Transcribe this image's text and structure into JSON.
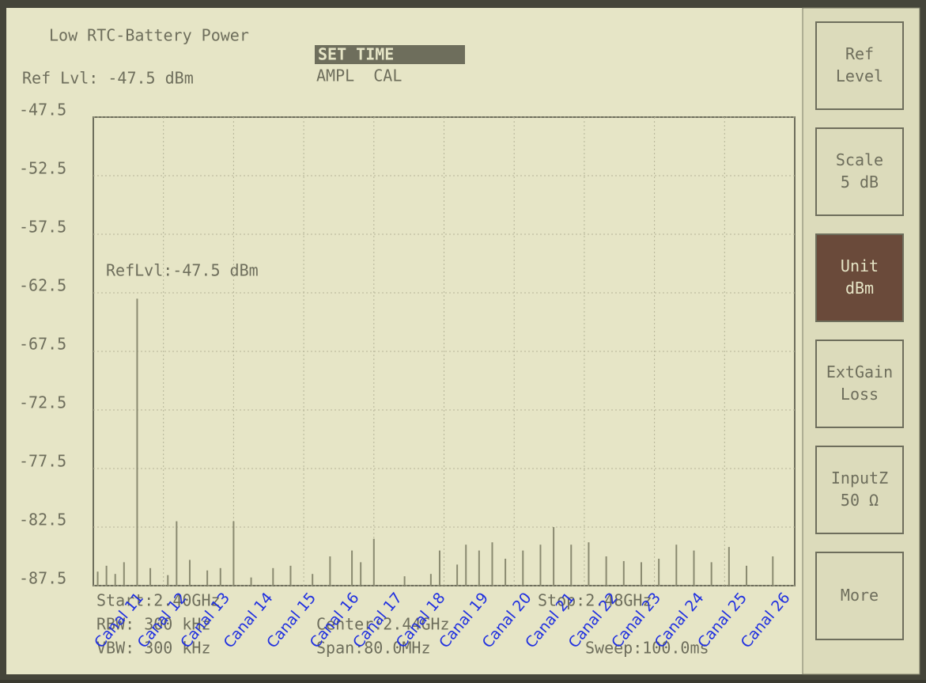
{
  "status": {
    "battery": "Low RTC-Battery Power",
    "set_time": "SET TIME",
    "ampl_cal": "AMPL  CAL"
  },
  "chart_data": {
    "type": "spectrum",
    "ref_level_label": "Ref Lvl: -47.5 dBm",
    "marker_label": "RefLvl:-47.5 dBm",
    "color": "#8a8a70",
    "xlim": [
      2.4,
      2.48
    ],
    "ylim": [
      -87.5,
      -47.5
    ],
    "yticks": [
      -47.5,
      -52.5,
      -57.5,
      -62.5,
      -67.5,
      -72.5,
      -77.5,
      -82.5,
      -87.5
    ],
    "grid": true,
    "x": [
      2.4005,
      2.4015,
      2.4025,
      2.4035,
      2.405,
      2.4065,
      2.4085,
      2.4095,
      2.411,
      2.413,
      2.4145,
      2.416,
      2.418,
      2.4205,
      2.4225,
      2.425,
      2.427,
      2.4295,
      2.4305,
      2.432,
      2.4355,
      2.4385,
      2.4395,
      2.4415,
      2.4425,
      2.444,
      2.4455,
      2.447,
      2.449,
      2.451,
      2.4525,
      2.4545,
      2.4565,
      2.4585,
      2.4605,
      2.4625,
      2.4645,
      2.4665,
      2.4685,
      2.4705,
      2.4725,
      2.4745,
      2.4775
    ],
    "values": [
      -86.3,
      -85.8,
      -86.5,
      -85.5,
      -63.0,
      -86.0,
      -86.6,
      -82.0,
      -85.3,
      -86.2,
      -86.0,
      -82.0,
      -86.8,
      -86.0,
      -85.8,
      -86.5,
      -85.0,
      -84.5,
      -85.5,
      -83.5,
      -86.7,
      -86.5,
      -84.5,
      -85.7,
      -84.0,
      -84.5,
      -83.8,
      -85.2,
      -84.5,
      -84.0,
      -82.5,
      -84.0,
      -83.8,
      -85.0,
      -85.4,
      -85.5,
      -85.2,
      -84.0,
      -84.5,
      -85.5,
      -84.2,
      -85.8,
      -85.0
    ],
    "channels": [
      "Canal 11",
      "Canal 12",
      "Canal 13",
      "Canal 14",
      "Canal 15",
      "Canal 16",
      "Canal 17",
      "Canal 18",
      "Canal 19",
      "Canal 20",
      "Canal 21",
      "Canal 22",
      "Canal 23",
      "Canal 24",
      "Canal 25",
      "Canal 26"
    ],
    "footer": [
      "Start:2.40GHz",
      "RBW: 300 kHz",
      "VBW: 300 kHz",
      "Center:2.44GHz",
      "Span:80.0MHz",
      "Stop:2.48GHz",
      "Sweep:100.0ms"
    ]
  },
  "softkeys": [
    "Ref\nLevel",
    "Scale\n5  dB",
    "Unit\ndBm",
    "ExtGain\nLoss",
    "InputZ\n50 Ω",
    "More"
  ]
}
